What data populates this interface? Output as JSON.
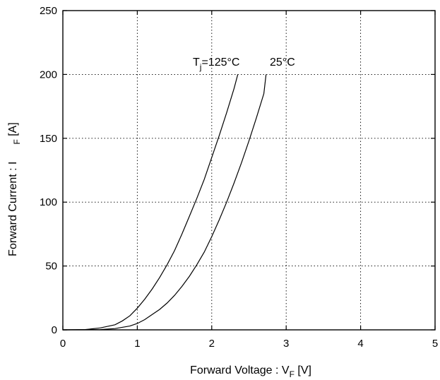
{
  "chart_data": {
    "type": "line",
    "title": "",
    "xlabel": "Forward Voltage : V",
    "xlabel_sub": "F",
    "xlabel_unit": " [V]",
    "ylabel": "Forward Current : I",
    "ylabel_sub": "F",
    "ylabel_unit": " [A]",
    "xlim": [
      0,
      5
    ],
    "ylim": [
      0,
      250
    ],
    "xticks": [
      0,
      1,
      2,
      3,
      4,
      5
    ],
    "yticks": [
      0,
      50,
      100,
      150,
      200,
      250
    ],
    "grid": true,
    "annotations": [
      {
        "prefix": "T",
        "sub": "j",
        "suffix": "=125°C"
      },
      {
        "text": "25°C"
      }
    ],
    "series": [
      {
        "x": [
          0,
          0.3,
          0.5,
          0.7,
          0.8,
          0.9,
          1.0,
          1.1,
          1.2,
          1.3,
          1.4,
          1.5,
          1.6,
          1.7,
          1.8,
          1.9,
          2.0,
          2.1,
          2.2,
          2.3,
          2.35
        ],
        "y": [
          0,
          0.2,
          1.5,
          4,
          7,
          11,
          17,
          24,
          32,
          41,
          51,
          62,
          75,
          89,
          103,
          118,
          135,
          152,
          170,
          189,
          200
        ]
      },
      {
        "x": [
          0,
          0.5,
          0.7,
          0.9,
          1.0,
          1.1,
          1.2,
          1.3,
          1.4,
          1.5,
          1.6,
          1.7,
          1.8,
          1.9,
          2.0,
          2.1,
          2.2,
          2.3,
          2.4,
          2.5,
          2.6,
          2.7,
          2.73
        ],
        "y": [
          0,
          0.2,
          1,
          3,
          5,
          8,
          12,
          16,
          21,
          27,
          34,
          42,
          51,
          61,
          73,
          86,
          100,
          115,
          131,
          148,
          166,
          185,
          200
        ]
      }
    ]
  }
}
